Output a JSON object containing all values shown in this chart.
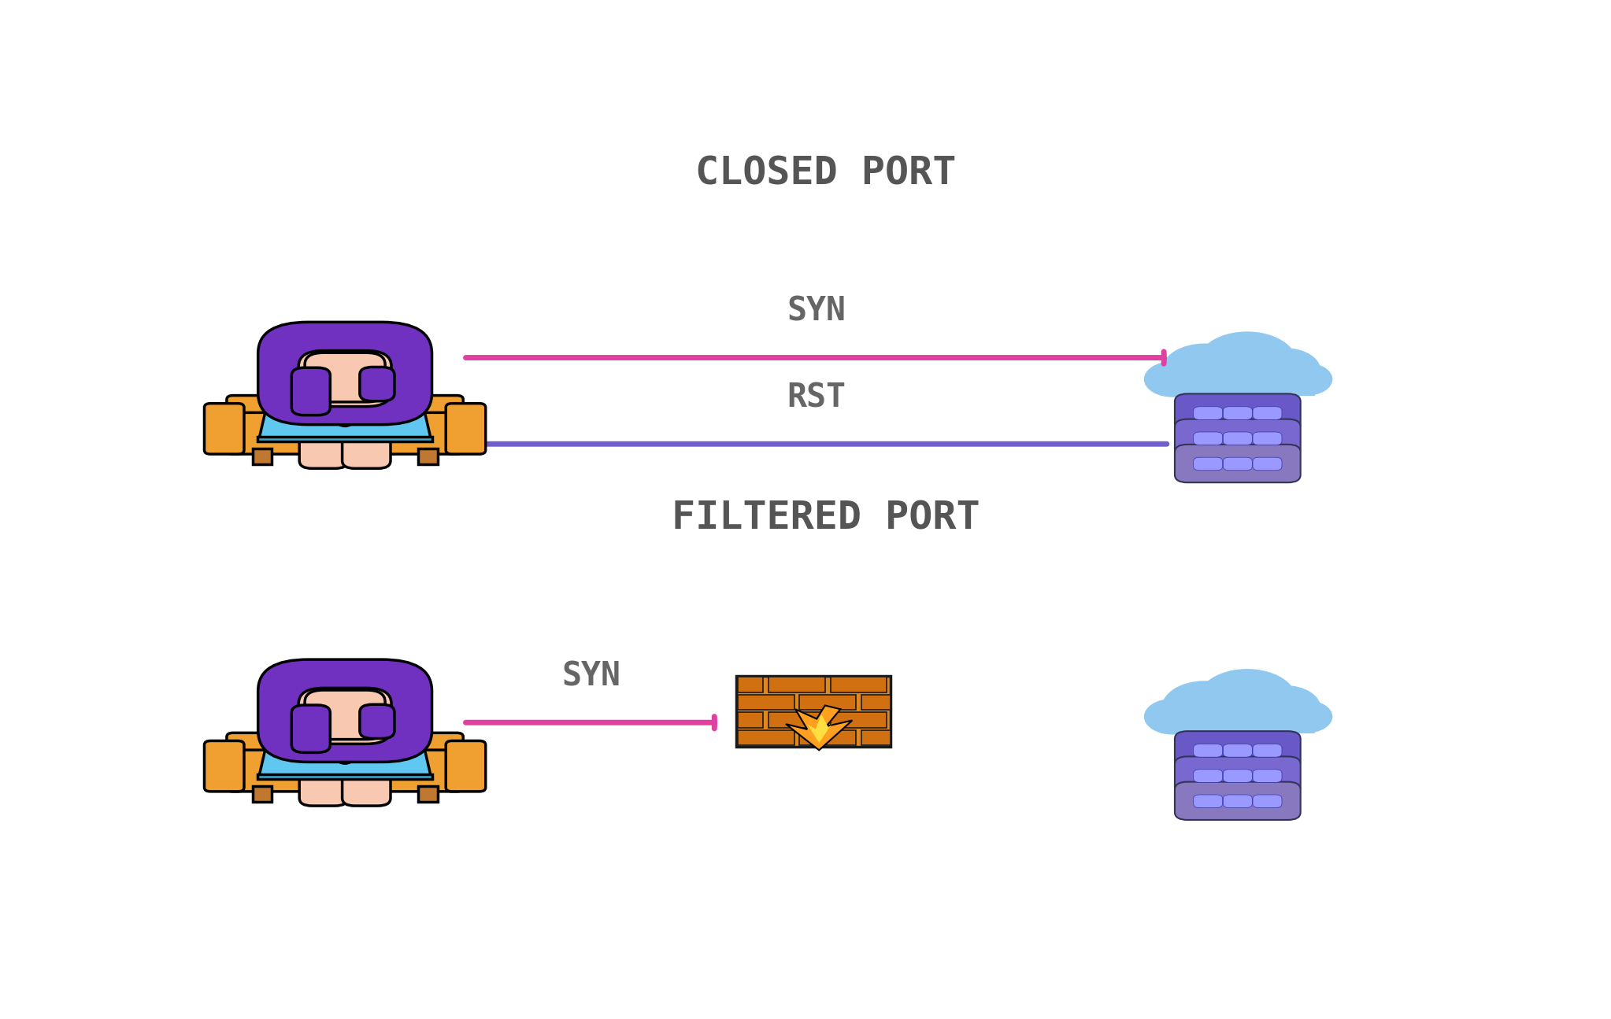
{
  "bg_color": "#ffffff",
  "title1": "CLOSED PORT",
  "title2": "FILTERED PORT",
  "title_color": "#555555",
  "title_fontsize": 36,
  "syn_label": "SYN",
  "rst_label": "RST",
  "label_color": "#666666",
  "label_fontsize": 30,
  "syn_arrow_color": "#e040a0",
  "rst_arrow_color": "#7060cc",
  "arrow_lw": 5.0,
  "hair_color": "#7030c0",
  "skin_color": "#f8c8b0",
  "shirt_color": "#e060a0",
  "sofa_color": "#f0a030",
  "sofa_dark": "#c87820",
  "leg_color": "#c07830",
  "laptop_color": "#60c8f0",
  "laptop_dark": "#40a8d0",
  "cloud_color": "#90c8f0",
  "cloud_light": "#b8dcf8",
  "server1_color": "#6858c8",
  "server2_color": "#7868d0",
  "server3_color": "#8878c0",
  "brick_wall_color": "#e08820",
  "brick_color": "#d07010",
  "mortar_color": "#1a1a1a",
  "flame_outer_color": "#ffa020",
  "flame_inner_color": "#ffe040"
}
